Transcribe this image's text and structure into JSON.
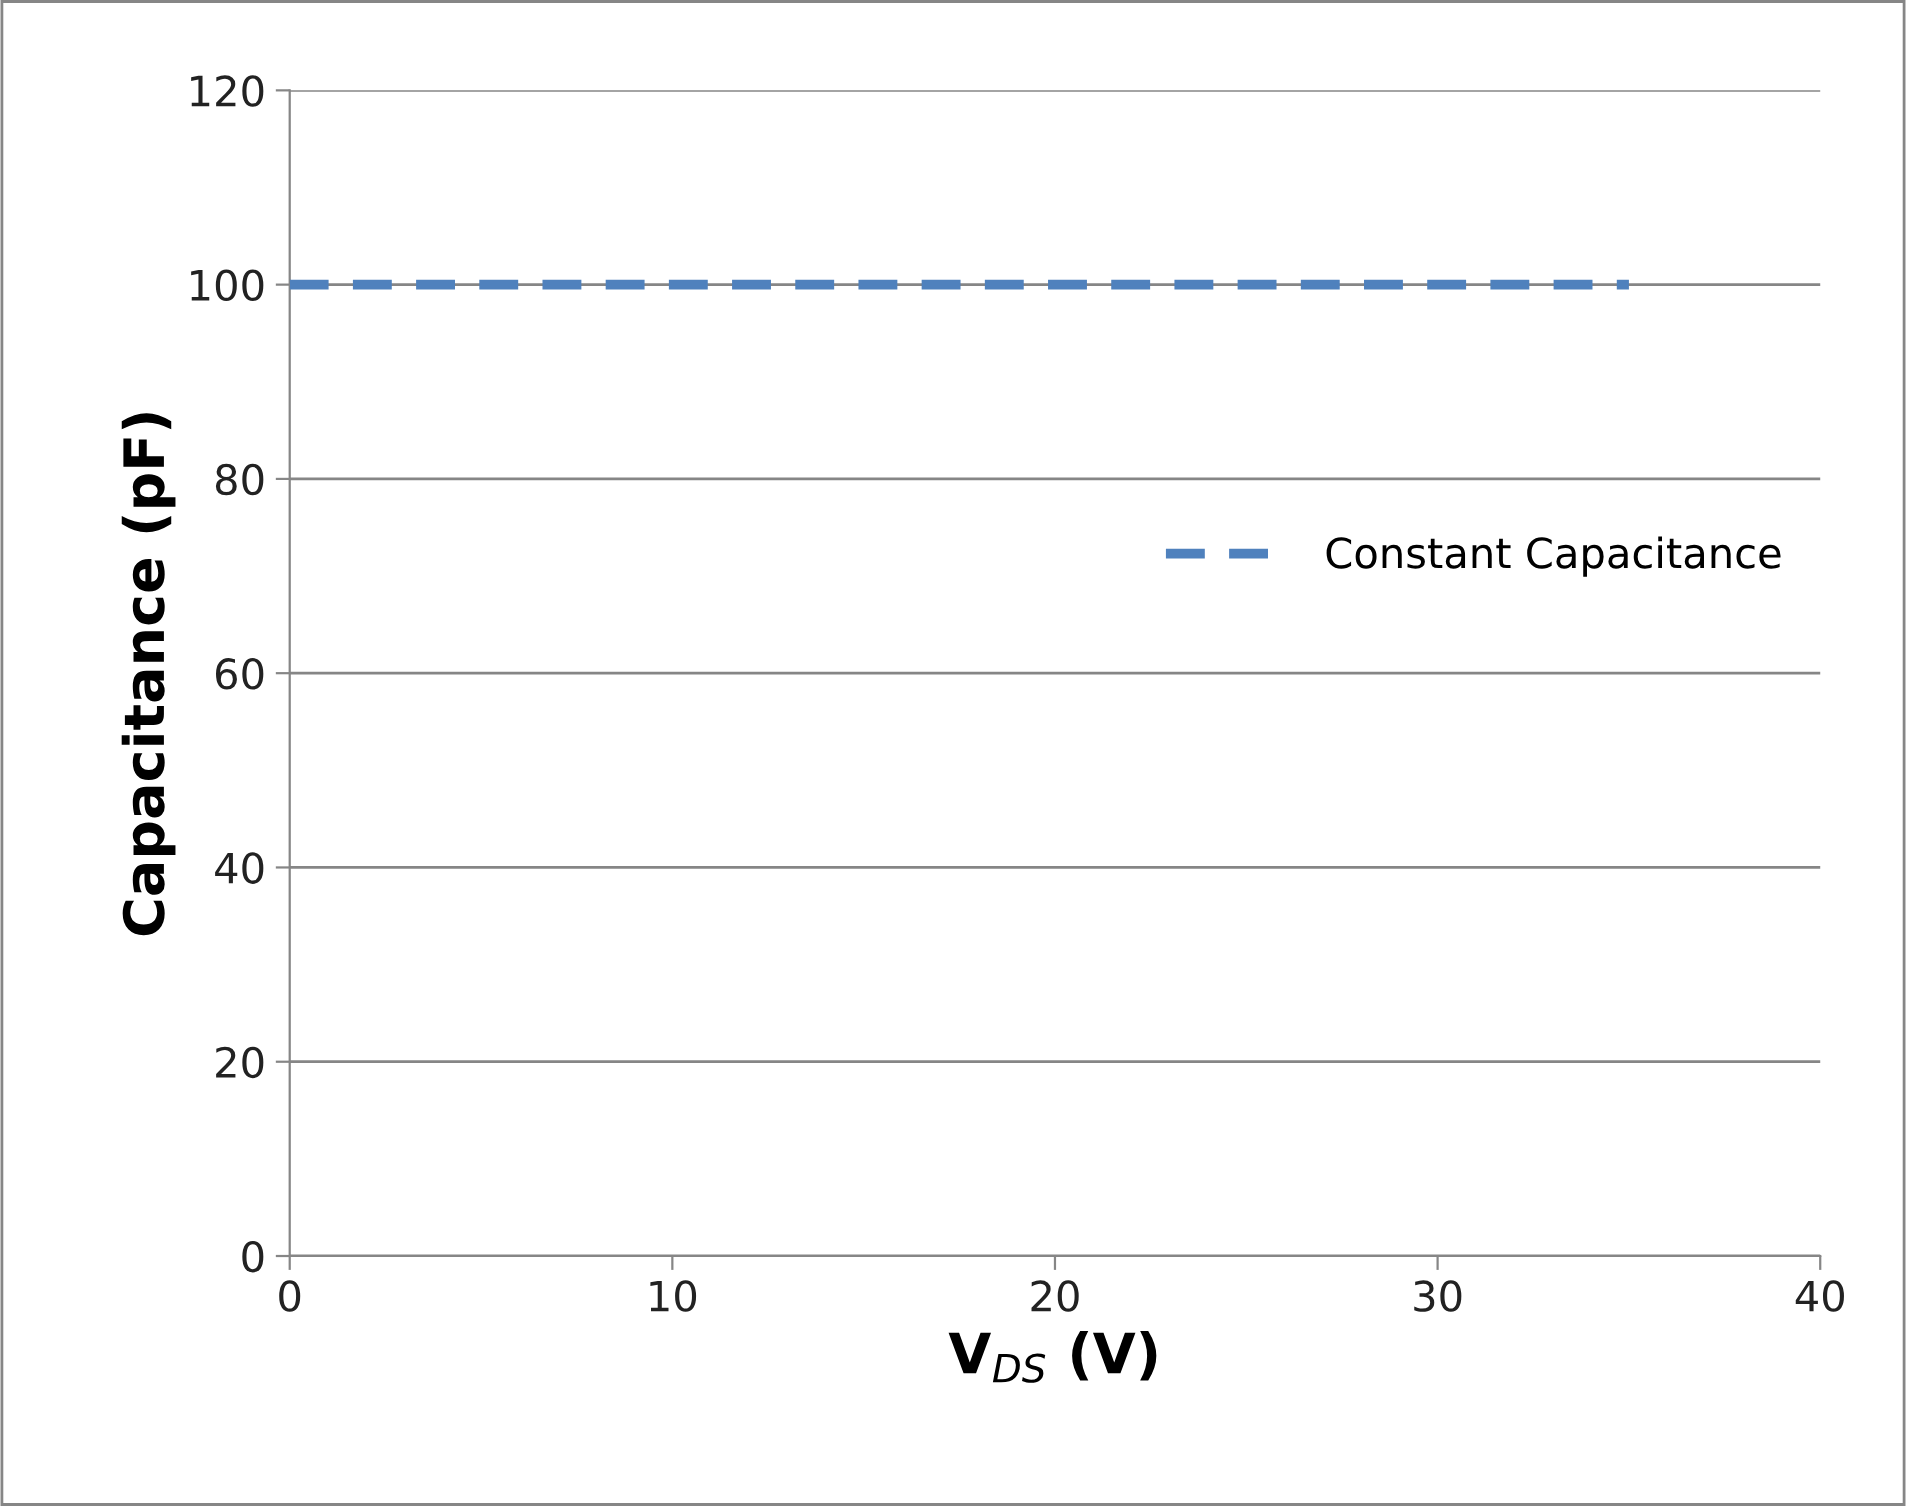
{
  "chart_data": {
    "type": "line",
    "xlabel": "V$_{DS}$ (V)",
    "ylabel": "Capacitance (pF)",
    "x": [
      0,
      35
    ],
    "series": [
      {
        "name": "Constant Capacitance",
        "color": "#4f81bd",
        "values": [
          100,
          100
        ]
      }
    ],
    "xlim": [
      0,
      40
    ],
    "xticks": [
      0,
      10,
      20,
      30,
      40
    ],
    "ylim": [
      0,
      120
    ],
    "yticks": [
      0,
      20,
      40,
      60,
      80,
      100,
      120
    ],
    "grid": "y",
    "legend": "right",
    "line_style": "dashed",
    "marker": "none"
  }
}
